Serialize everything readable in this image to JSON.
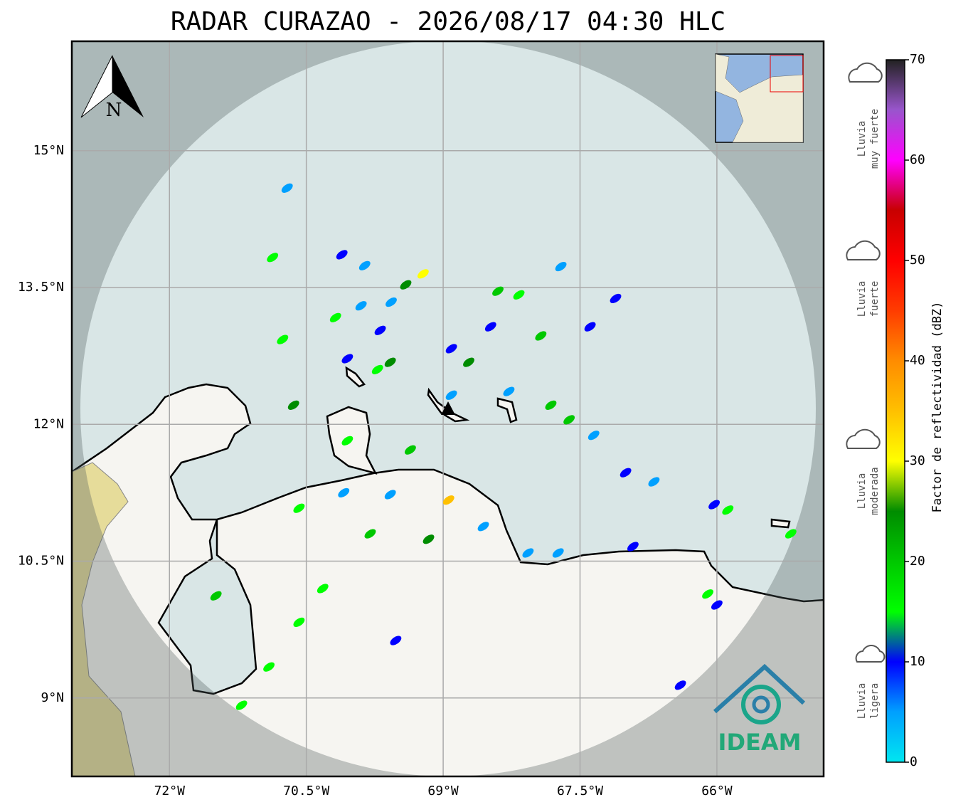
{
  "title": "RADAR CURAZAO - 2026/08/17 04:30 HLC",
  "map": {
    "xlim": [
      -73.07,
      -64.83
    ],
    "ylim": [
      8.14,
      16.2
    ],
    "xticks": [
      {
        "value": -72,
        "label": "72°W"
      },
      {
        "value": -70.5,
        "label": "70.5°W"
      },
      {
        "value": -69,
        "label": "69°W"
      },
      {
        "value": -67.5,
        "label": "67.5°W"
      },
      {
        "value": -66,
        "label": "66°W"
      }
    ],
    "yticks": [
      {
        "value": 15,
        "label": "15°N"
      },
      {
        "value": 13.5,
        "label": "13.5°N"
      },
      {
        "value": 12,
        "label": "12°N"
      },
      {
        "value": 10.5,
        "label": "10.5°N"
      },
      {
        "value": 9,
        "label": "9°N"
      }
    ],
    "grid": true,
    "north_label": "N",
    "echoes": [
      {
        "lon": -70.71,
        "lat": 14.59,
        "dbz": 5
      },
      {
        "lon": -70.87,
        "lat": 13.83,
        "dbz": 15
      },
      {
        "lon": -70.11,
        "lat": 13.86,
        "dbz": 10
      },
      {
        "lon": -69.86,
        "lat": 13.74,
        "dbz": 5
      },
      {
        "lon": -69.22,
        "lat": 13.65,
        "dbz": 30
      },
      {
        "lon": -69.41,
        "lat": 13.53,
        "dbz": 25
      },
      {
        "lon": -69.57,
        "lat": 13.34,
        "dbz": 5
      },
      {
        "lon": -69.69,
        "lat": 13.03,
        "dbz": 10
      },
      {
        "lon": -68.4,
        "lat": 13.46,
        "dbz": 20
      },
      {
        "lon": -68.17,
        "lat": 13.42,
        "dbz": 15
      },
      {
        "lon": -68.48,
        "lat": 13.07,
        "dbz": 10
      },
      {
        "lon": -67.93,
        "lat": 12.97,
        "dbz": 20
      },
      {
        "lon": -67.71,
        "lat": 13.73,
        "dbz": 5
      },
      {
        "lon": -67.11,
        "lat": 13.38,
        "dbz": 10
      },
      {
        "lon": -67.39,
        "lat": 13.07,
        "dbz": 10
      },
      {
        "lon": -69.58,
        "lat": 12.68,
        "dbz": 25
      },
      {
        "lon": -69.72,
        "lat": 12.6,
        "dbz": 15
      },
      {
        "lon": -68.91,
        "lat": 12.32,
        "dbz": 5
      },
      {
        "lon": -68.72,
        "lat": 12.68,
        "dbz": 25
      },
      {
        "lon": -68.91,
        "lat": 12.83,
        "dbz": 10
      },
      {
        "lon": -67.82,
        "lat": 12.21,
        "dbz": 20
      },
      {
        "lon": -67.62,
        "lat": 12.05,
        "dbz": 20
      },
      {
        "lon": -67.35,
        "lat": 11.88,
        "dbz": 5
      },
      {
        "lon": -67.0,
        "lat": 11.47,
        "dbz": 10
      },
      {
        "lon": -66.69,
        "lat": 11.37,
        "dbz": 5
      },
      {
        "lon": -70.64,
        "lat": 12.21,
        "dbz": 25
      },
      {
        "lon": -70.05,
        "lat": 11.82,
        "dbz": 15
      },
      {
        "lon": -69.36,
        "lat": 11.72,
        "dbz": 20
      },
      {
        "lon": -70.58,
        "lat": 11.08,
        "dbz": 15
      },
      {
        "lon": -70.09,
        "lat": 11.25,
        "dbz": 5
      },
      {
        "lon": -69.58,
        "lat": 11.23,
        "dbz": 5
      },
      {
        "lon": -69.8,
        "lat": 10.8,
        "dbz": 20
      },
      {
        "lon": -69.16,
        "lat": 10.74,
        "dbz": 25
      },
      {
        "lon": -68.94,
        "lat": 11.17,
        "dbz": 35
      },
      {
        "lon": -68.56,
        "lat": 10.88,
        "dbz": 5
      },
      {
        "lon": -68.07,
        "lat": 10.59,
        "dbz": 5
      },
      {
        "lon": -67.74,
        "lat": 10.59,
        "dbz": 5
      },
      {
        "lon": -66.92,
        "lat": 10.66,
        "dbz": 10
      },
      {
        "lon": -66.1,
        "lat": 10.14,
        "dbz": 15
      },
      {
        "lon": -66.0,
        "lat": 10.02,
        "dbz": 10
      },
      {
        "lon": -71.49,
        "lat": 10.12,
        "dbz": 20
      },
      {
        "lon": -70.58,
        "lat": 9.83,
        "dbz": 15
      },
      {
        "lon": -70.32,
        "lat": 10.2,
        "dbz": 15
      },
      {
        "lon": -70.91,
        "lat": 9.34,
        "dbz": 15
      },
      {
        "lon": -71.21,
        "lat": 8.92,
        "dbz": 15
      },
      {
        "lon": -69.52,
        "lat": 9.63,
        "dbz": 10
      },
      {
        "lon": -66.4,
        "lat": 9.14,
        "dbz": 10
      },
      {
        "lon": -65.88,
        "lat": 11.06,
        "dbz": 15
      },
      {
        "lon": -65.19,
        "lat": 10.8,
        "dbz": 15
      },
      {
        "lon": -66.03,
        "lat": 11.12,
        "dbz": 10
      },
      {
        "lon": -70.05,
        "lat": 12.72,
        "dbz": 10
      },
      {
        "lon": -70.18,
        "lat": 13.17,
        "dbz": 15
      },
      {
        "lon": -70.76,
        "lat": 12.93,
        "dbz": 15
      },
      {
        "lon": -69.9,
        "lat": 13.3,
        "dbz": 5
      },
      {
        "lon": -68.28,
        "lat": 12.36,
        "dbz": 5
      }
    ]
  },
  "colorbar": {
    "label": "Factor de reflectividad (dBZ)",
    "lim": [
      0,
      70
    ],
    "ticks": [
      0,
      10,
      20,
      30,
      40,
      50,
      60,
      70
    ],
    "colors": [
      "#00e6f0",
      "#00a0ff",
      "#0000ff",
      "#00ff00",
      "#00c800",
      "#008c00",
      "#ffff00",
      "#ffc000",
      "#ff8c00",
      "#ff3c00",
      "#ff0000",
      "#c80000",
      "#ff00ff",
      "#9955cc",
      "#222222"
    ]
  },
  "intensity_labels": [
    {
      "lines": [
        "Lluvia",
        "muy fuerte"
      ]
    },
    {
      "lines": [
        "Lluvia",
        "fuerte"
      ]
    },
    {
      "lines": [
        "Lluvia",
        "moderada"
      ]
    },
    {
      "lines": [
        "Lluvia",
        "ligera"
      ]
    }
  ],
  "logo": "IDEAM"
}
